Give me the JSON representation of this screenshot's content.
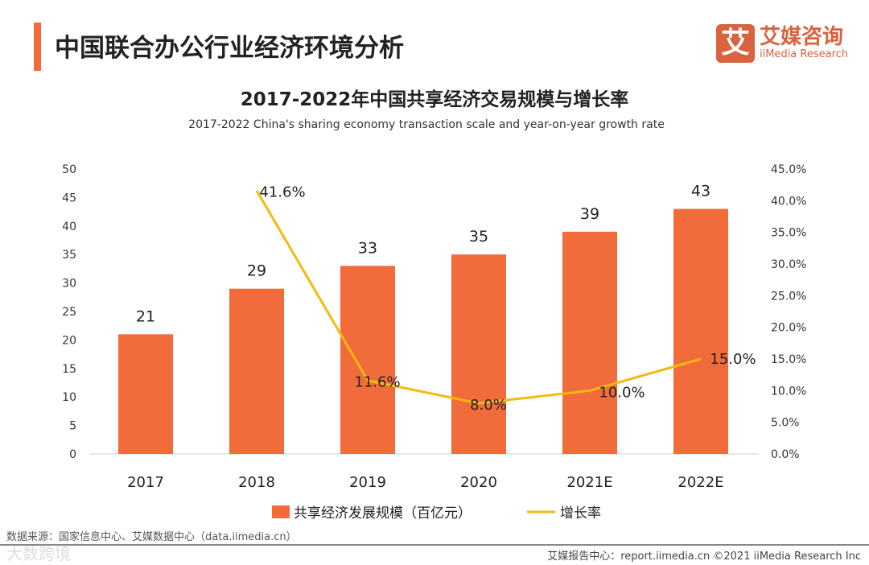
{
  "header": {
    "title": "中国联合办公行业经济环境分析"
  },
  "logo": {
    "mark": "艾",
    "cn": "艾媒咨询",
    "en": "iiMedia Research"
  },
  "chart_data": {
    "type": "bar+line",
    "title": "2017-2022年中国共享经济交易规模与增长率",
    "subtitle": "2017-2022 China's sharing economy transaction scale and year-on-year growth rate",
    "categories": [
      "2017",
      "2018",
      "2019",
      "2020",
      "2021E",
      "2022E"
    ],
    "series": [
      {
        "name": "共享经济发展规模（百亿元）",
        "type": "bar",
        "axis": "left",
        "color": "#f26b3a",
        "values": [
          21,
          29,
          33,
          35,
          39,
          43
        ],
        "labels": [
          "21",
          "29",
          "33",
          "35",
          "39",
          "43"
        ]
      },
      {
        "name": "增长率",
        "type": "line",
        "axis": "right",
        "color": "#f5b90f",
        "values": [
          null,
          41.6,
          11.6,
          8.0,
          10.0,
          15.0
        ],
        "labels": [
          "",
          "41.6%",
          "11.6%",
          "8.0%",
          "10.0%",
          "15.0%"
        ]
      }
    ],
    "ylim": [
      0,
      50
    ],
    "yticks": [
      "0",
      "5",
      "10",
      "15",
      "20",
      "25",
      "30",
      "35",
      "40",
      "45",
      "50"
    ],
    "y2lim": [
      0,
      45
    ],
    "y2ticks": [
      "0.0%",
      "5.0%",
      "10.0%",
      "15.0%",
      "20.0%",
      "25.0%",
      "30.0%",
      "35.0%",
      "40.0%",
      "45.0%"
    ],
    "legend": "bottom"
  },
  "source": "数据来源：国家信息中心、艾媒数据中心（data.iimedia.cn）",
  "watermark": "大数跨境",
  "footer": "艾媒报告中心：report.iimedia.cn   ©2021  iiMedia Research  Inc"
}
